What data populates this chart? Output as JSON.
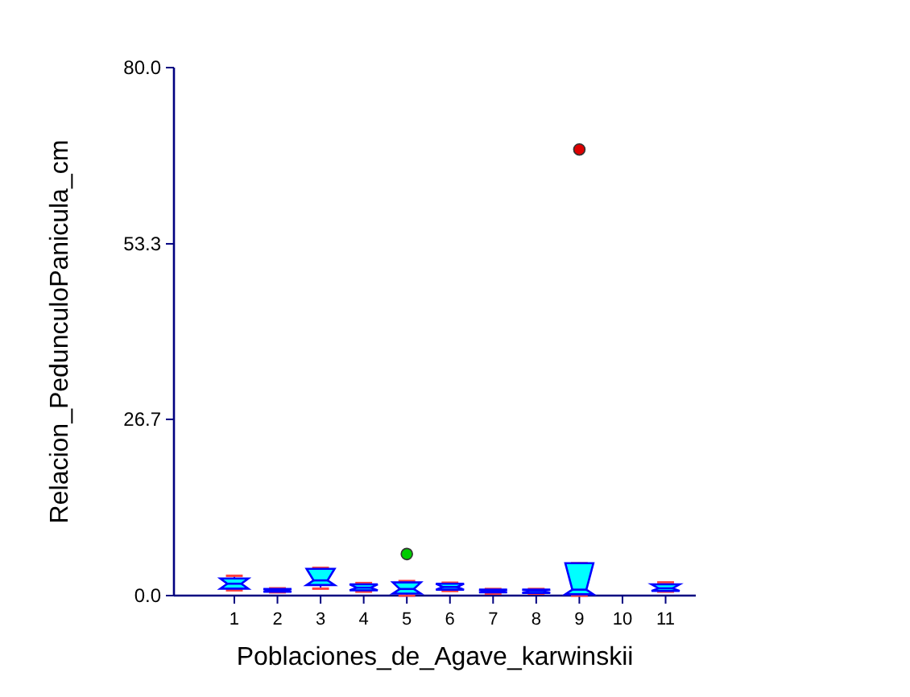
{
  "chart_data": {
    "type": "box",
    "xlabel": "Poblaciones_de_Agave_karwinskii",
    "ylabel": "Relacion_PedunculoPanicula_cm",
    "categories": [
      "1",
      "2",
      "3",
      "4",
      "5",
      "6",
      "7",
      "8",
      "9",
      "10",
      "11"
    ],
    "ylim": [
      0,
      80
    ],
    "yticks": [
      {
        "value": 0,
        "label": "0.0"
      },
      {
        "value": 26.7,
        "label": "26.7"
      },
      {
        "value": 53.3,
        "label": "53.3"
      },
      {
        "value": 80,
        "label": "80.0"
      }
    ],
    "grid": false,
    "series": [
      {
        "color": "#00ffff",
        "boxes": [
          {
            "low": 0.8,
            "q1": 1.05,
            "median": 1.8,
            "q3": 2.6,
            "high": 3.0
          },
          {
            "low": 0.5,
            "q1": 0.6,
            "median": 0.8,
            "q3": 1.0,
            "high": 1.1
          },
          {
            "low": 1.05,
            "q1": 1.6,
            "median": 2.3,
            "q3": 4.05,
            "high": 4.2
          },
          {
            "low": 0.6,
            "q1": 0.8,
            "median": 1.2,
            "q3": 1.7,
            "high": 1.9
          },
          {
            "low": 0.0,
            "q1": 0.3,
            "median": 1.0,
            "q3": 2.0,
            "high": 2.2
          },
          {
            "low": 0.7,
            "q1": 0.9,
            "median": 1.3,
            "q3": 1.8,
            "high": 1.95
          },
          {
            "low": 0.3,
            "q1": 0.5,
            "median": 0.7,
            "q3": 0.9,
            "high": 1.0
          },
          {
            "low": 0.3,
            "q1": 0.4,
            "median": 0.7,
            "q3": 0.9,
            "high": 1.0
          },
          {
            "low": 0.0,
            "q1": 0.2,
            "median": 0.9,
            "q3": 4.9,
            "high": 4.9
          },
          null,
          {
            "low": 0.6,
            "q1": 0.7,
            "median": 1.1,
            "q3": 1.7,
            "high": 2.0
          }
        ]
      },
      {
        "type": "scatter",
        "x": [
          "5",
          "9"
        ],
        "values": [
          6.3,
          67.6
        ],
        "colors": [
          "#00cc00",
          "#dd0000"
        ],
        "marker": "circle"
      }
    ]
  }
}
